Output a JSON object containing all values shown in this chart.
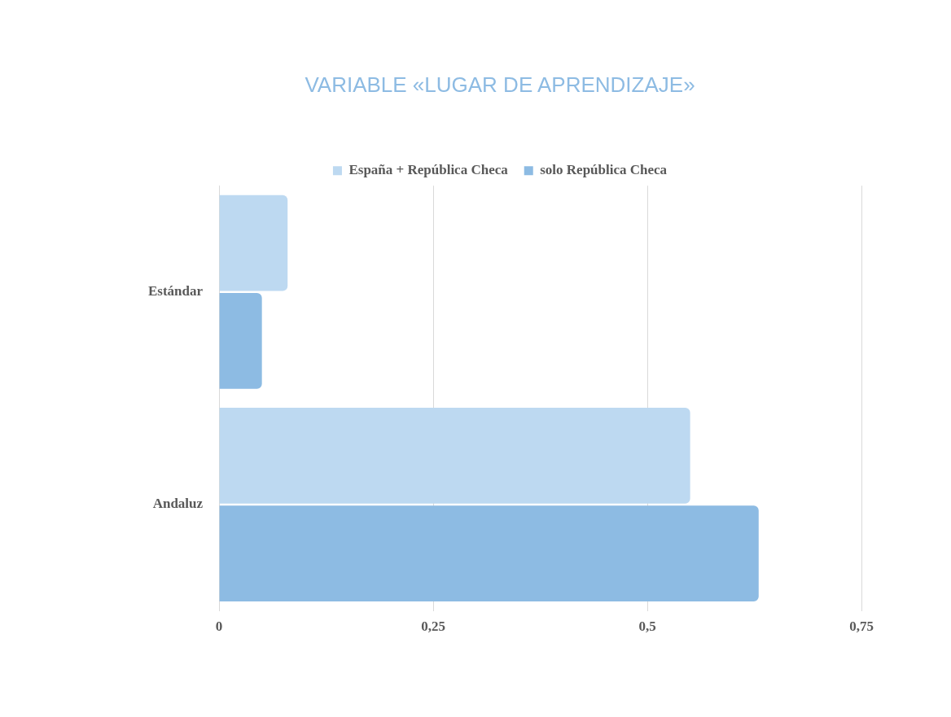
{
  "chart_data": {
    "type": "bar",
    "orientation": "horizontal",
    "title": "VARIABLE «LUGAR DE APRENDIZAJE»",
    "categories": [
      "Estándar",
      "Andaluz"
    ],
    "series": [
      {
        "name": "España + República Checa",
        "color": "#bdd9f1",
        "values": [
          0.08,
          0.55
        ]
      },
      {
        "name": "solo República Checa",
        "color": "#8dbbe3",
        "values": [
          0.05,
          0.63
        ]
      }
    ],
    "xlim": [
      0,
      0.75
    ],
    "xticks": [
      0,
      {
        "value": 0.25,
        "label": "0,25"
      },
      {
        "value": 0.5,
        "label": "0,5"
      },
      {
        "value": 0.75,
        "label": "0,75"
      }
    ],
    "grid": "x",
    "legend": "top"
  }
}
